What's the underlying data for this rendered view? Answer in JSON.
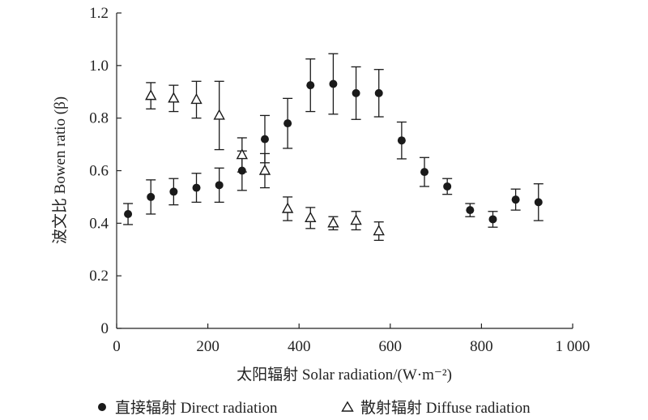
{
  "chart_data": {
    "type": "scatter",
    "xlabel": "太阳辐射 Solar radiation/(W·m⁻²)",
    "ylabel": "波文比 Bowen ratio (β)",
    "xlim": [
      0,
      1000
    ],
    "ylim": [
      0,
      1.2
    ],
    "x_ticks": [
      0,
      200,
      400,
      600,
      800,
      1000
    ],
    "x_tick_labels": [
      "0",
      "200",
      "400",
      "600",
      "800",
      "1 000"
    ],
    "y_ticks": [
      0,
      0.2,
      0.4,
      0.6,
      0.8,
      1.0,
      1.2
    ],
    "y_tick_labels": [
      "0",
      "0.2",
      "0.4",
      "0.6",
      "0.8",
      "1.0",
      "1.2"
    ],
    "grid": false,
    "legend_position": "bottom",
    "series": [
      {
        "name": "直接辐射 Direct radiation",
        "marker": "filled-circle",
        "color": "#1a1a1a",
        "points": [
          {
            "x": 25,
            "y": 0.435,
            "err": 0.04
          },
          {
            "x": 75,
            "y": 0.5,
            "err": 0.065
          },
          {
            "x": 125,
            "y": 0.52,
            "err": 0.05
          },
          {
            "x": 175,
            "y": 0.535,
            "err": 0.055
          },
          {
            "x": 225,
            "y": 0.545,
            "err": 0.065
          },
          {
            "x": 275,
            "y": 0.6,
            "err": 0.075
          },
          {
            "x": 325,
            "y": 0.72,
            "err": 0.09
          },
          {
            "x": 375,
            "y": 0.78,
            "err": 0.095
          },
          {
            "x": 425,
            "y": 0.925,
            "err": 0.1
          },
          {
            "x": 475,
            "y": 0.93,
            "err": 0.115
          },
          {
            "x": 525,
            "y": 0.895,
            "err": 0.1
          },
          {
            "x": 575,
            "y": 0.895,
            "err": 0.09
          },
          {
            "x": 625,
            "y": 0.715,
            "err": 0.07
          },
          {
            "x": 675,
            "y": 0.595,
            "err": 0.055
          },
          {
            "x": 725,
            "y": 0.54,
            "err": 0.03
          },
          {
            "x": 775,
            "y": 0.45,
            "err": 0.025
          },
          {
            "x": 825,
            "y": 0.415,
            "err": 0.03
          },
          {
            "x": 875,
            "y": 0.49,
            "err": 0.04
          },
          {
            "x": 925,
            "y": 0.48,
            "err": 0.07
          }
        ]
      },
      {
        "name": "散射辐射 Diffuse radiation",
        "marker": "open-triangle",
        "color": "#1a1a1a",
        "points": [
          {
            "x": 75,
            "y": 0.885,
            "err": 0.05
          },
          {
            "x": 125,
            "y": 0.875,
            "err": 0.05
          },
          {
            "x": 175,
            "y": 0.87,
            "err": 0.07
          },
          {
            "x": 225,
            "y": 0.81,
            "err": 0.13
          },
          {
            "x": 275,
            "y": 0.66,
            "err": 0.065
          },
          {
            "x": 325,
            "y": 0.6,
            "err": 0.065
          },
          {
            "x": 375,
            "y": 0.455,
            "err": 0.045
          },
          {
            "x": 425,
            "y": 0.42,
            "err": 0.04
          },
          {
            "x": 475,
            "y": 0.4,
            "err": 0.025
          },
          {
            "x": 525,
            "y": 0.41,
            "err": 0.035
          },
          {
            "x": 575,
            "y": 0.37,
            "err": 0.035
          }
        ]
      }
    ]
  }
}
